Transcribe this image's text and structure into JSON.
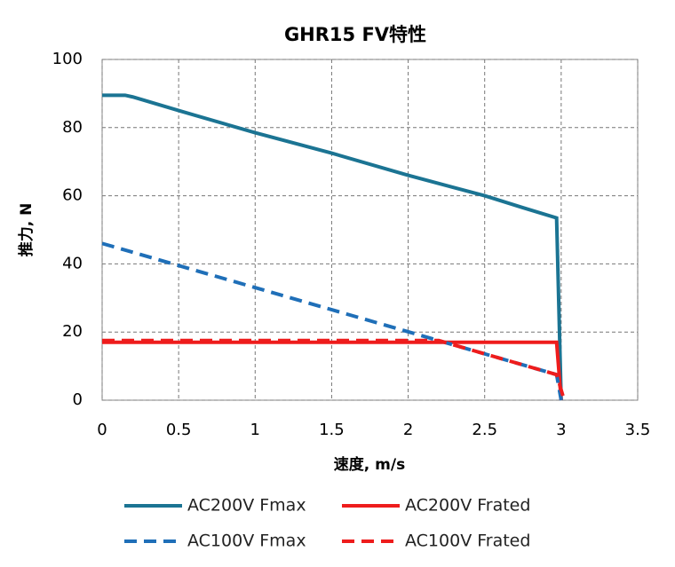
{
  "chart_data": {
    "type": "line",
    "title": "GHR15 FV特性",
    "x_label": "速度, m/s",
    "y_label": "推力, N",
    "xlim": [
      0,
      3.5
    ],
    "xticks": [
      0,
      0.5,
      1,
      1.5,
      2,
      2.5,
      3,
      3.5
    ],
    "ylim": [
      0,
      100
    ],
    "yticks": [
      0,
      20,
      40,
      60,
      80,
      100
    ],
    "grid": true,
    "legend": "bottom",
    "series": [
      {
        "name": "AC200V Fmax",
        "color": "#1b7493",
        "dash": false,
        "x": [
          0,
          0.15,
          0.2,
          0.5,
          1,
          1.5,
          2,
          2.5,
          2.75,
          2.97,
          3.0
        ],
        "values": [
          89.5,
          89.5,
          89,
          85,
          78.5,
          72.5,
          66,
          60,
          56.5,
          53.5,
          0
        ]
      },
      {
        "name": "AC200V Frated",
        "color": "#ee1c1c",
        "dash": false,
        "x": [
          0,
          2.97,
          3.0
        ],
        "values": [
          17,
          17,
          0
        ]
      },
      {
        "name": "AC100V Fmax",
        "color": "#1f6fb8",
        "dash": true,
        "x": [
          0,
          2.97,
          3.0
        ],
        "values": [
          46,
          7.5,
          0
        ]
      },
      {
        "name": "AC100V Frated",
        "color": "#ee1c1c",
        "dash": true,
        "x": [
          0,
          2.2,
          2.97,
          3.02
        ],
        "values": [
          17.5,
          17.5,
          7.5,
          0
        ]
      }
    ]
  }
}
